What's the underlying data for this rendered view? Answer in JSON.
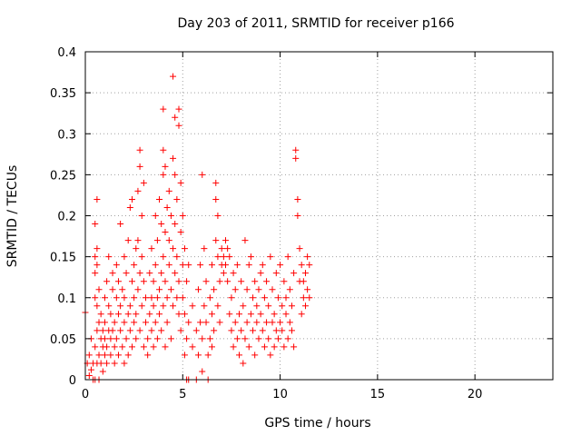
{
  "chart_data": {
    "type": "scatter",
    "title": "Day 203 of 2011, SRMTID for receiver p166",
    "xlabel": "GPS time / hours",
    "ylabel": "SRMTID / TECUs",
    "xlim": [
      0,
      24
    ],
    "ylim": [
      0,
      0.4
    ],
    "x_ticks": [
      0,
      5,
      10,
      15,
      20
    ],
    "y_ticks": [
      0,
      0.05,
      0.1,
      0.15,
      0.2,
      0.25,
      0.3,
      0.35,
      0.4
    ],
    "x_tick_labels": [
      "0",
      "5",
      "10",
      "15",
      "20"
    ],
    "y_tick_labels": [
      "0",
      "0.05",
      "0.1",
      "0.15",
      "0.2",
      "0.25",
      "0.3",
      "0.35",
      "0.4"
    ],
    "grid": true,
    "marker": "+",
    "marker_color": "#ff0000",
    "series": [
      {
        "points": [
          [
            0.0,
            0.082
          ],
          [
            0.1,
            0.02
          ],
          [
            0.2,
            0.005
          ],
          [
            0.2,
            0.03
          ],
          [
            0.3,
            0.012
          ],
          [
            0.3,
            0.05
          ],
          [
            0.4,
            0.0
          ],
          [
            0.4,
            0.02
          ],
          [
            0.5,
            0.0
          ],
          [
            0.5,
            0.04
          ],
          [
            0.5,
            0.1
          ],
          [
            0.5,
            0.15
          ],
          [
            0.5,
            0.19
          ],
          [
            0.5,
            0.13
          ],
          [
            0.6,
            0.14
          ],
          [
            0.6,
            0.16
          ],
          [
            0.6,
            0.09
          ],
          [
            0.6,
            0.06
          ],
          [
            0.6,
            0.02
          ],
          [
            0.6,
            0.22
          ],
          [
            0.7,
            0.07
          ],
          [
            0.7,
            0.11
          ],
          [
            0.7,
            0.03
          ],
          [
            0.7,
            0.0
          ],
          [
            0.8,
            0.05
          ],
          [
            0.8,
            0.08
          ],
          [
            0.8,
            0.02
          ],
          [
            0.9,
            0.04
          ],
          [
            0.9,
            0.06
          ],
          [
            0.9,
            0.01
          ],
          [
            1.0,
            0.03
          ],
          [
            1.0,
            0.05
          ],
          [
            1.0,
            0.1
          ],
          [
            1.0,
            0.07
          ],
          [
            1.1,
            0.04
          ],
          [
            1.1,
            0.12
          ],
          [
            1.1,
            0.02
          ],
          [
            1.2,
            0.06
          ],
          [
            1.2,
            0.09
          ],
          [
            1.2,
            0.15
          ],
          [
            1.3,
            0.03
          ],
          [
            1.3,
            0.05
          ],
          [
            1.3,
            0.08
          ],
          [
            1.4,
            0.06
          ],
          [
            1.4,
            0.11
          ],
          [
            1.4,
            0.13
          ],
          [
            1.5,
            0.04
          ],
          [
            1.5,
            0.07
          ],
          [
            1.5,
            0.02
          ],
          [
            1.6,
            0.1
          ],
          [
            1.6,
            0.05
          ],
          [
            1.6,
            0.14
          ],
          [
            1.7,
            0.03
          ],
          [
            1.7,
            0.08
          ],
          [
            1.7,
            0.12
          ],
          [
            1.8,
            0.06
          ],
          [
            1.8,
            0.09
          ],
          [
            1.8,
            0.19
          ],
          [
            1.9,
            0.04
          ],
          [
            1.9,
            0.11
          ],
          [
            2.0,
            0.07
          ],
          [
            2.0,
            0.1
          ],
          [
            2.0,
            0.15
          ],
          [
            2.0,
            0.02
          ],
          [
            2.1,
            0.05
          ],
          [
            2.1,
            0.13
          ],
          [
            2.2,
            0.08
          ],
          [
            2.2,
            0.17
          ],
          [
            2.2,
            0.03
          ],
          [
            2.3,
            0.06
          ],
          [
            2.3,
            0.09
          ],
          [
            2.3,
            0.21
          ],
          [
            2.4,
            0.12
          ],
          [
            2.4,
            0.22
          ],
          [
            2.4,
            0.04
          ],
          [
            2.5,
            0.07
          ],
          [
            2.5,
            0.14
          ],
          [
            2.5,
            0.1
          ],
          [
            2.6,
            0.05
          ],
          [
            2.6,
            0.16
          ],
          [
            2.6,
            0.08
          ],
          [
            2.7,
            0.11
          ],
          [
            2.7,
            0.17
          ],
          [
            2.7,
            0.23
          ],
          [
            2.8,
            0.06
          ],
          [
            2.8,
            0.13
          ],
          [
            2.8,
            0.26
          ],
          [
            2.8,
            0.28
          ],
          [
            2.9,
            0.09
          ],
          [
            2.9,
            0.2
          ],
          [
            2.9,
            0.15
          ],
          [
            3.0,
            0.04
          ],
          [
            3.0,
            0.12
          ],
          [
            3.0,
            0.24
          ],
          [
            3.1,
            0.07
          ],
          [
            3.1,
            0.1
          ],
          [
            3.2,
            0.03
          ],
          [
            3.2,
            0.05
          ],
          [
            3.3,
            0.08
          ],
          [
            3.3,
            0.13
          ],
          [
            3.4,
            0.06
          ],
          [
            3.4,
            0.1
          ],
          [
            3.4,
            0.16
          ],
          [
            3.5,
            0.09
          ],
          [
            3.5,
            0.12
          ],
          [
            3.5,
            0.04
          ],
          [
            3.6,
            0.07
          ],
          [
            3.6,
            0.14
          ],
          [
            3.6,
            0.2
          ],
          [
            3.7,
            0.1
          ],
          [
            3.7,
            0.05
          ],
          [
            3.7,
            0.17
          ],
          [
            3.8,
            0.11
          ],
          [
            3.8,
            0.08
          ],
          [
            3.8,
            0.22
          ],
          [
            3.9,
            0.13
          ],
          [
            3.9,
            0.06
          ],
          [
            3.9,
            0.19
          ],
          [
            4.0,
            0.15
          ],
          [
            4.0,
            0.09
          ],
          [
            4.0,
            0.25
          ],
          [
            4.0,
            0.28
          ],
          [
            4.0,
            0.33
          ],
          [
            4.1,
            0.12
          ],
          [
            4.1,
            0.18
          ],
          [
            4.1,
            0.26
          ],
          [
            4.1,
            0.04
          ],
          [
            4.2,
            0.1
          ],
          [
            4.2,
            0.21
          ],
          [
            4.2,
            0.07
          ],
          [
            4.3,
            0.14
          ],
          [
            4.3,
            0.23
          ],
          [
            4.3,
            0.17
          ],
          [
            4.4,
            0.11
          ],
          [
            4.4,
            0.2
          ],
          [
            4.4,
            0.05
          ],
          [
            4.5,
            0.16
          ],
          [
            4.5,
            0.27
          ],
          [
            4.5,
            0.37
          ],
          [
            4.5,
            0.09
          ],
          [
            4.6,
            0.13
          ],
          [
            4.6,
            0.19
          ],
          [
            4.6,
            0.32
          ],
          [
            4.6,
            0.25
          ],
          [
            4.7,
            0.1
          ],
          [
            4.7,
            0.22
          ],
          [
            4.7,
            0.15
          ],
          [
            4.8,
            0.08
          ],
          [
            4.8,
            0.12
          ],
          [
            4.8,
            0.31
          ],
          [
            4.8,
            0.33
          ],
          [
            4.9,
            0.18
          ],
          [
            4.9,
            0.24
          ],
          [
            4.9,
            0.06
          ],
          [
            5.0,
            0.14
          ],
          [
            5.0,
            0.2
          ],
          [
            5.0,
            0.1
          ],
          [
            5.1,
            0.03
          ],
          [
            5.1,
            0.08
          ],
          [
            5.1,
            0.16
          ],
          [
            5.2,
            0.05
          ],
          [
            5.2,
            0.12
          ],
          [
            5.2,
            0.0
          ],
          [
            5.3,
            0.07
          ],
          [
            5.3,
            0.14
          ],
          [
            5.3,
            0.0
          ],
          [
            5.5,
            0.09
          ],
          [
            5.5,
            0.04
          ],
          [
            5.7,
            0.0
          ],
          [
            5.7,
            0.06
          ],
          [
            5.8,
            0.11
          ],
          [
            5.8,
            0.03
          ],
          [
            5.9,
            0.07
          ],
          [
            5.9,
            0.14
          ],
          [
            6.0,
            0.05
          ],
          [
            6.0,
            0.25
          ],
          [
            6.0,
            0.01
          ],
          [
            6.1,
            0.09
          ],
          [
            6.1,
            0.16
          ],
          [
            6.2,
            0.12
          ],
          [
            6.2,
            0.07
          ],
          [
            6.3,
            0.03
          ],
          [
            6.3,
            0.0
          ],
          [
            6.4,
            0.05
          ],
          [
            6.4,
            0.1
          ],
          [
            6.5,
            0.08
          ],
          [
            6.5,
            0.14
          ],
          [
            6.5,
            0.04
          ],
          [
            6.6,
            0.11
          ],
          [
            6.6,
            0.06
          ],
          [
            6.7,
            0.22
          ],
          [
            6.7,
            0.24
          ],
          [
            6.7,
            0.17
          ],
          [
            6.8,
            0.09
          ],
          [
            6.8,
            0.15
          ],
          [
            6.8,
            0.2
          ],
          [
            6.9,
            0.12
          ],
          [
            6.9,
            0.07
          ],
          [
            7.0,
            0.14
          ],
          [
            7.0,
            0.16
          ],
          [
            7.1,
            0.13
          ],
          [
            7.1,
            0.15
          ],
          [
            7.2,
            0.14
          ],
          [
            7.2,
            0.17
          ],
          [
            7.3,
            0.12
          ],
          [
            7.3,
            0.16
          ],
          [
            7.4,
            0.08
          ],
          [
            7.4,
            0.15
          ],
          [
            7.5,
            0.06
          ],
          [
            7.5,
            0.1
          ],
          [
            7.6,
            0.04
          ],
          [
            7.6,
            0.13
          ],
          [
            7.7,
            0.07
          ],
          [
            7.7,
            0.11
          ],
          [
            7.8,
            0.05
          ],
          [
            7.8,
            0.14
          ],
          [
            7.9,
            0.08
          ],
          [
            7.9,
            0.03
          ],
          [
            8.0,
            0.06
          ],
          [
            8.0,
            0.12
          ],
          [
            8.1,
            0.09
          ],
          [
            8.1,
            0.02
          ],
          [
            8.2,
            0.05
          ],
          [
            8.2,
            0.17
          ],
          [
            8.3,
            0.07
          ],
          [
            8.3,
            0.11
          ],
          [
            8.4,
            0.04
          ],
          [
            8.4,
            0.14
          ],
          [
            8.5,
            0.08
          ],
          [
            8.5,
            0.15
          ],
          [
            8.6,
            0.06
          ],
          [
            8.6,
            0.1
          ],
          [
            8.7,
            0.03
          ],
          [
            8.7,
            0.12
          ],
          [
            8.8,
            0.07
          ],
          [
            8.8,
            0.09
          ],
          [
            8.9,
            0.05
          ],
          [
            8.9,
            0.11
          ],
          [
            9.0,
            0.08
          ],
          [
            9.0,
            0.13
          ],
          [
            9.1,
            0.06
          ],
          [
            9.1,
            0.14
          ],
          [
            9.2,
            0.04
          ],
          [
            9.2,
            0.1
          ],
          [
            9.3,
            0.07
          ],
          [
            9.3,
            0.12
          ],
          [
            9.4,
            0.05
          ],
          [
            9.4,
            0.09
          ],
          [
            9.5,
            0.03
          ],
          [
            9.5,
            0.15
          ],
          [
            9.6,
            0.07
          ],
          [
            9.6,
            0.11
          ],
          [
            9.7,
            0.04
          ],
          [
            9.7,
            0.08
          ],
          [
            9.8,
            0.06
          ],
          [
            9.8,
            0.13
          ],
          [
            9.9,
            0.05
          ],
          [
            9.9,
            0.1
          ],
          [
            10.0,
            0.07
          ],
          [
            10.0,
            0.14
          ],
          [
            10.1,
            0.06
          ],
          [
            10.1,
            0.09
          ],
          [
            10.2,
            0.04
          ],
          [
            10.2,
            0.12
          ],
          [
            10.3,
            0.08
          ],
          [
            10.3,
            0.1
          ],
          [
            10.4,
            0.05
          ],
          [
            10.4,
            0.15
          ],
          [
            10.5,
            0.07
          ],
          [
            10.5,
            0.11
          ],
          [
            10.6,
            0.06
          ],
          [
            10.6,
            0.09
          ],
          [
            10.7,
            0.04
          ],
          [
            10.7,
            0.13
          ],
          [
            10.8,
            0.27
          ],
          [
            10.8,
            0.28
          ],
          [
            10.9,
            0.2
          ],
          [
            10.9,
            0.22
          ],
          [
            11.0,
            0.12
          ],
          [
            11.0,
            0.16
          ],
          [
            11.1,
            0.08
          ],
          [
            11.1,
            0.14
          ],
          [
            11.2,
            0.1
          ],
          [
            11.2,
            0.12
          ],
          [
            11.3,
            0.09
          ],
          [
            11.3,
            0.13
          ],
          [
            11.4,
            0.11
          ],
          [
            11.4,
            0.15
          ],
          [
            11.5,
            0.1
          ],
          [
            11.5,
            0.14
          ]
        ]
      }
    ]
  }
}
